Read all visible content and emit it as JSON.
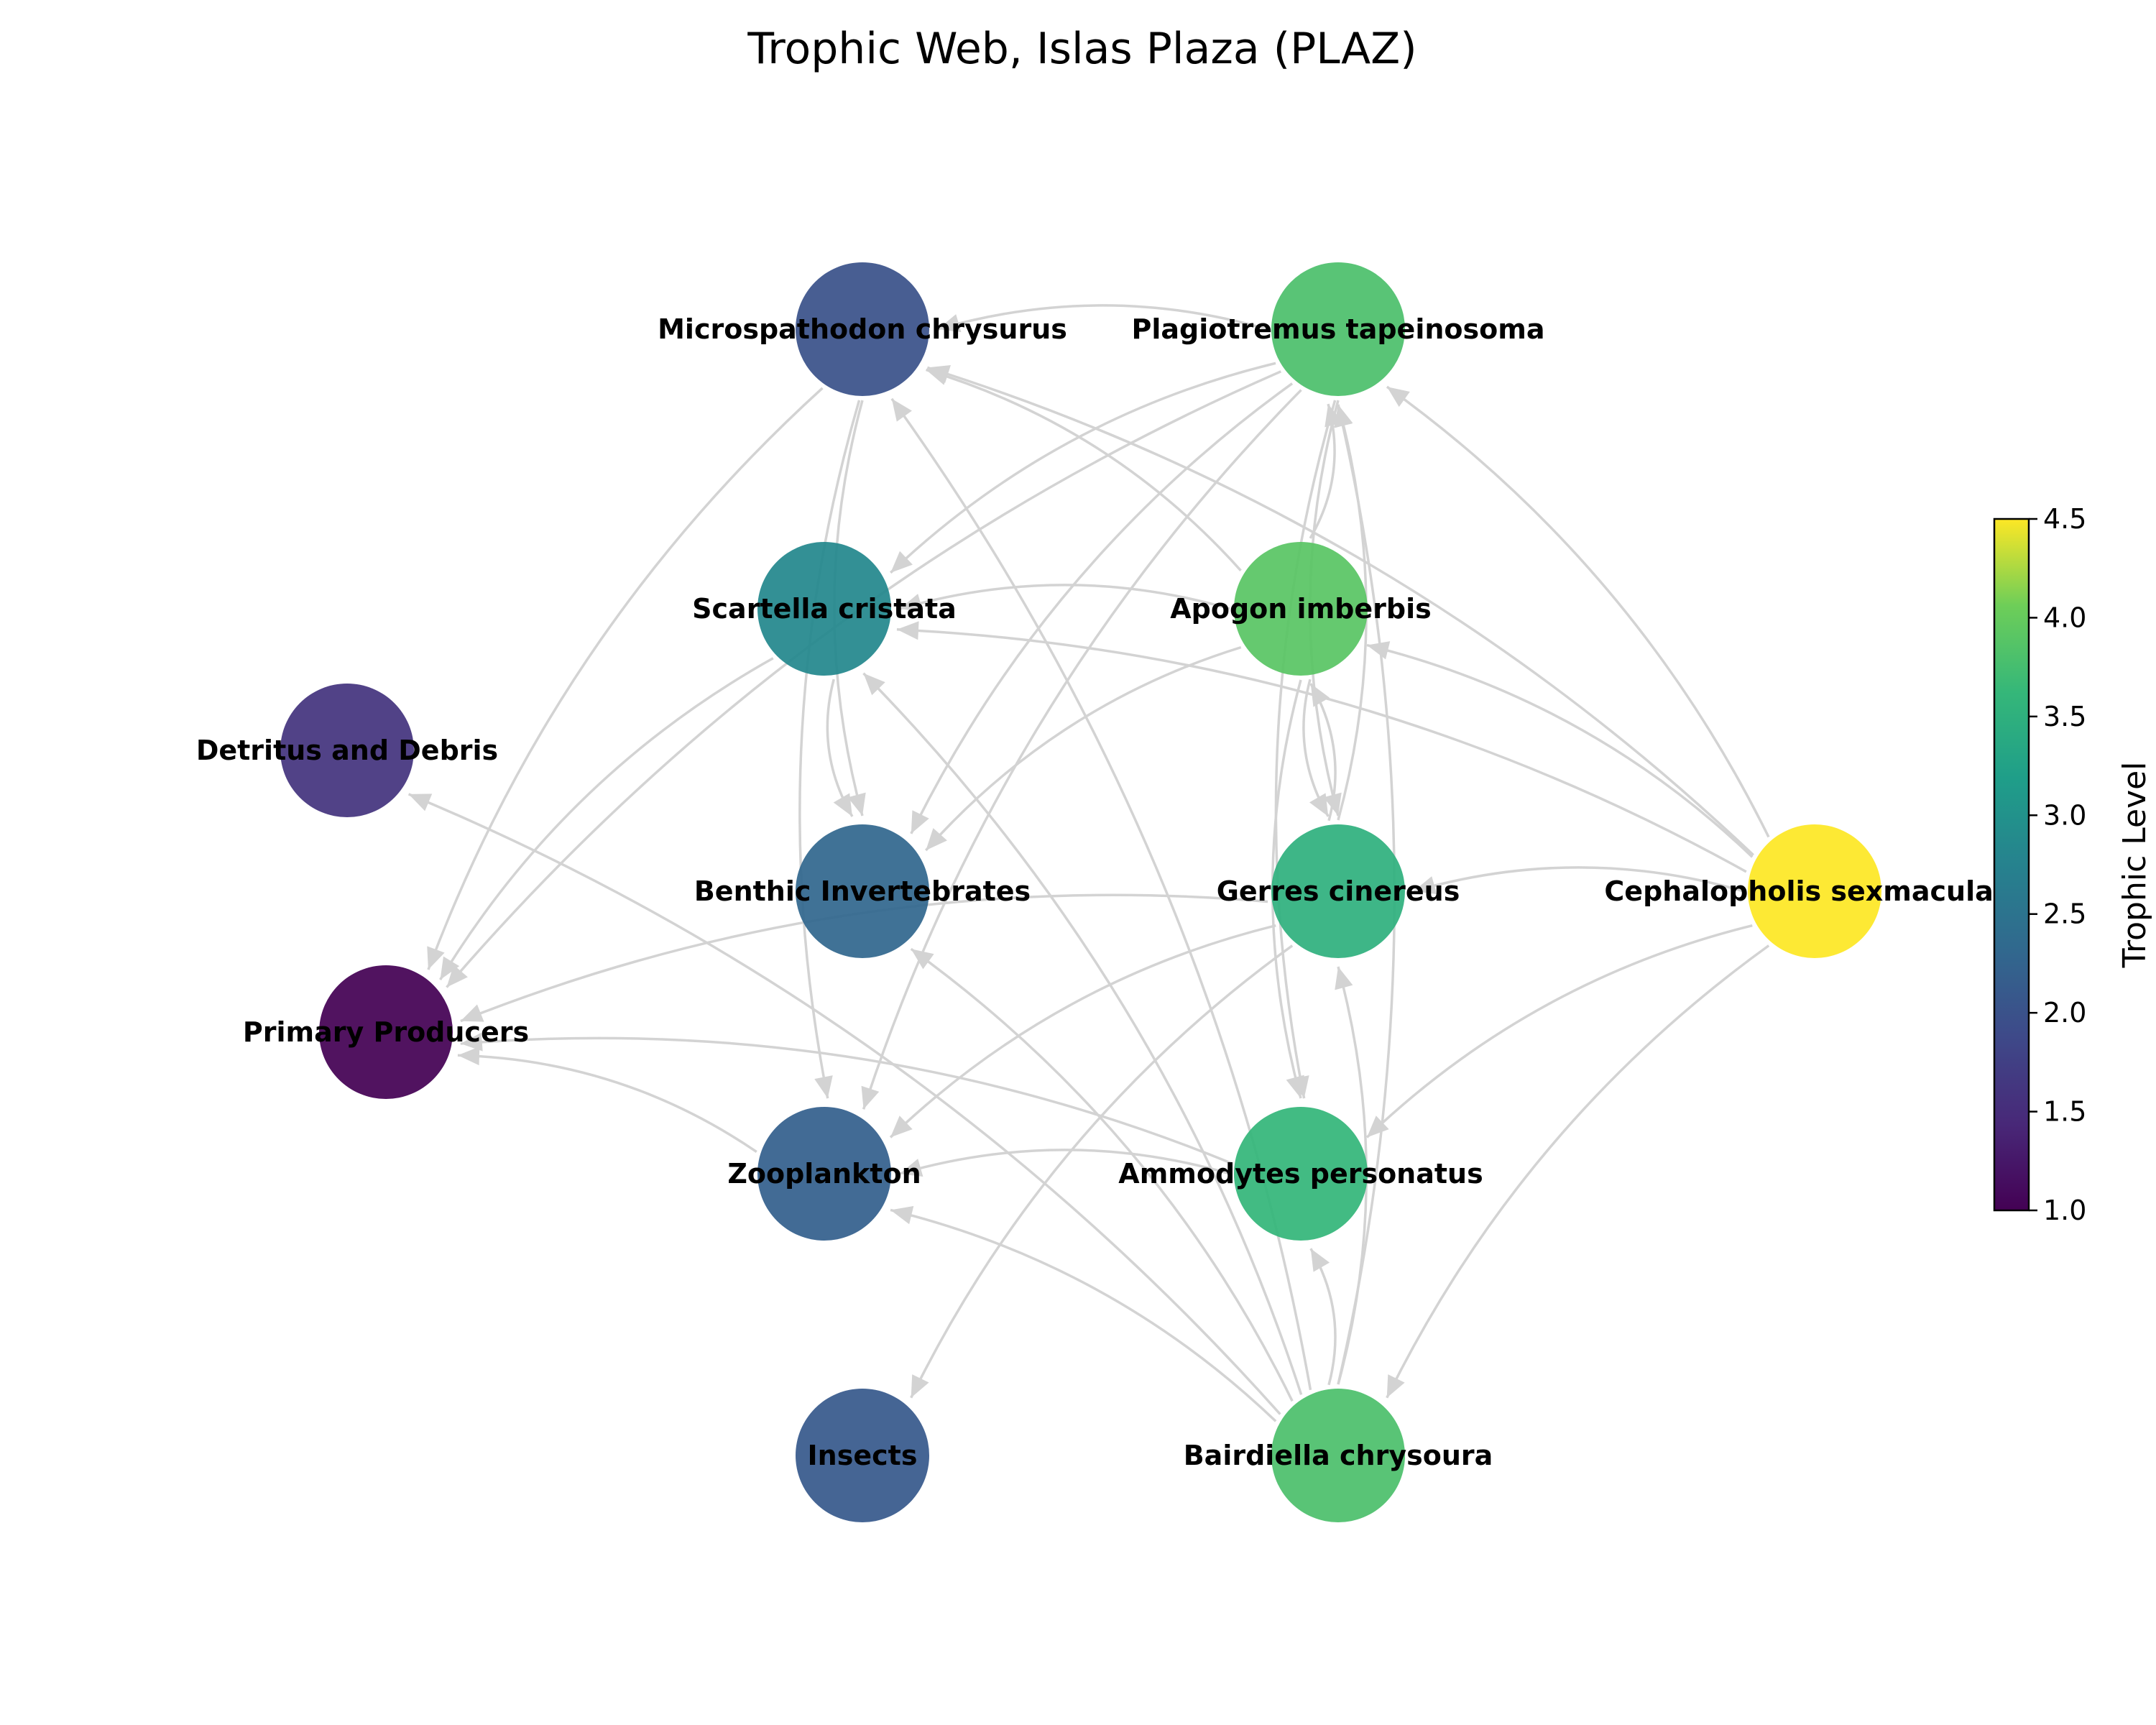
{
  "title": "Trophic Web, Islas Plaza (PLAZ)",
  "colorbar": {
    "label": "Trophic Level",
    "min": 1.0,
    "max": 4.5,
    "ticks": [
      "1.0",
      "1.5",
      "2.0",
      "2.5",
      "3.0",
      "3.5",
      "4.0",
      "4.5"
    ],
    "colormap": "viridis"
  },
  "nodes": [
    {
      "id": "microspathodon",
      "label": "Microspathodon chrysurus",
      "trophic_level": 2.0
    },
    {
      "id": "plagiotremus",
      "label": "Plagiotremus tapeinosoma",
      "trophic_level": 3.8
    },
    {
      "id": "scartella",
      "label": "Scartella cristata",
      "trophic_level": 2.85
    },
    {
      "id": "apogon",
      "label": "Apogon imberbis",
      "trophic_level": 3.9
    },
    {
      "id": "detritus",
      "label": "Detritus and Debris",
      "trophic_level": 1.6
    },
    {
      "id": "benthic",
      "label": "Benthic Invertebrates",
      "trophic_level": 2.3
    },
    {
      "id": "gerres",
      "label": "Gerres cinereus",
      "trophic_level": 3.5
    },
    {
      "id": "cephalopholis",
      "label": "Cephalopholis sexmaculata",
      "trophic_level": 4.5
    },
    {
      "id": "primary",
      "label": "Primary Producers",
      "trophic_level": 1.0
    },
    {
      "id": "zooplankton",
      "label": "Zooplankton",
      "trophic_level": 2.2
    },
    {
      "id": "ammodytes",
      "label": "Ammodytes personatus",
      "trophic_level": 3.6
    },
    {
      "id": "insects",
      "label": "Insects",
      "trophic_level": 2.1
    },
    {
      "id": "bairdiella",
      "label": "Bairdiella chrysoura",
      "trophic_level": 3.8
    }
  ],
  "edges": [
    {
      "from": "plagiotremus",
      "to": "microspathodon"
    },
    {
      "from": "plagiotremus",
      "to": "scartella"
    },
    {
      "from": "plagiotremus",
      "to": "primary"
    },
    {
      "from": "plagiotremus",
      "to": "benthic"
    },
    {
      "from": "plagiotremus",
      "to": "zooplankton"
    },
    {
      "from": "plagiotremus",
      "to": "gerres"
    },
    {
      "from": "plagiotremus",
      "to": "ammodytes"
    },
    {
      "from": "microspathodon",
      "to": "primary"
    },
    {
      "from": "microspathodon",
      "to": "benthic"
    },
    {
      "from": "microspathodon",
      "to": "zooplankton"
    },
    {
      "from": "scartella",
      "to": "primary"
    },
    {
      "from": "scartella",
      "to": "benthic"
    },
    {
      "from": "apogon",
      "to": "microspathodon"
    },
    {
      "from": "apogon",
      "to": "scartella"
    },
    {
      "from": "apogon",
      "to": "benthic"
    },
    {
      "from": "apogon",
      "to": "plagiotremus"
    },
    {
      "from": "apogon",
      "to": "gerres"
    },
    {
      "from": "apogon",
      "to": "ammodytes"
    },
    {
      "from": "gerres",
      "to": "primary"
    },
    {
      "from": "gerres",
      "to": "zooplankton"
    },
    {
      "from": "gerres",
      "to": "insects"
    },
    {
      "from": "gerres",
      "to": "apogon"
    },
    {
      "from": "gerres",
      "to": "plagiotremus"
    },
    {
      "from": "cephalopholis",
      "to": "microspathodon"
    },
    {
      "from": "cephalopholis",
      "to": "plagiotremus"
    },
    {
      "from": "cephalopholis",
      "to": "scartella"
    },
    {
      "from": "cephalopholis",
      "to": "apogon"
    },
    {
      "from": "cephalopholis",
      "to": "gerres"
    },
    {
      "from": "cephalopholis",
      "to": "ammodytes"
    },
    {
      "from": "cephalopholis",
      "to": "bairdiella"
    },
    {
      "from": "ammodytes",
      "to": "primary"
    },
    {
      "from": "ammodytes",
      "to": "zooplankton"
    },
    {
      "from": "zooplankton",
      "to": "primary"
    },
    {
      "from": "bairdiella",
      "to": "microspathodon"
    },
    {
      "from": "bairdiella",
      "to": "scartella"
    },
    {
      "from": "bairdiella",
      "to": "detritus"
    },
    {
      "from": "bairdiella",
      "to": "benthic"
    },
    {
      "from": "bairdiella",
      "to": "zooplankton"
    },
    {
      "from": "bairdiella",
      "to": "gerres"
    },
    {
      "from": "bairdiella",
      "to": "ammodytes"
    },
    {
      "from": "bairdiella",
      "to": "plagiotremus"
    }
  ]
}
